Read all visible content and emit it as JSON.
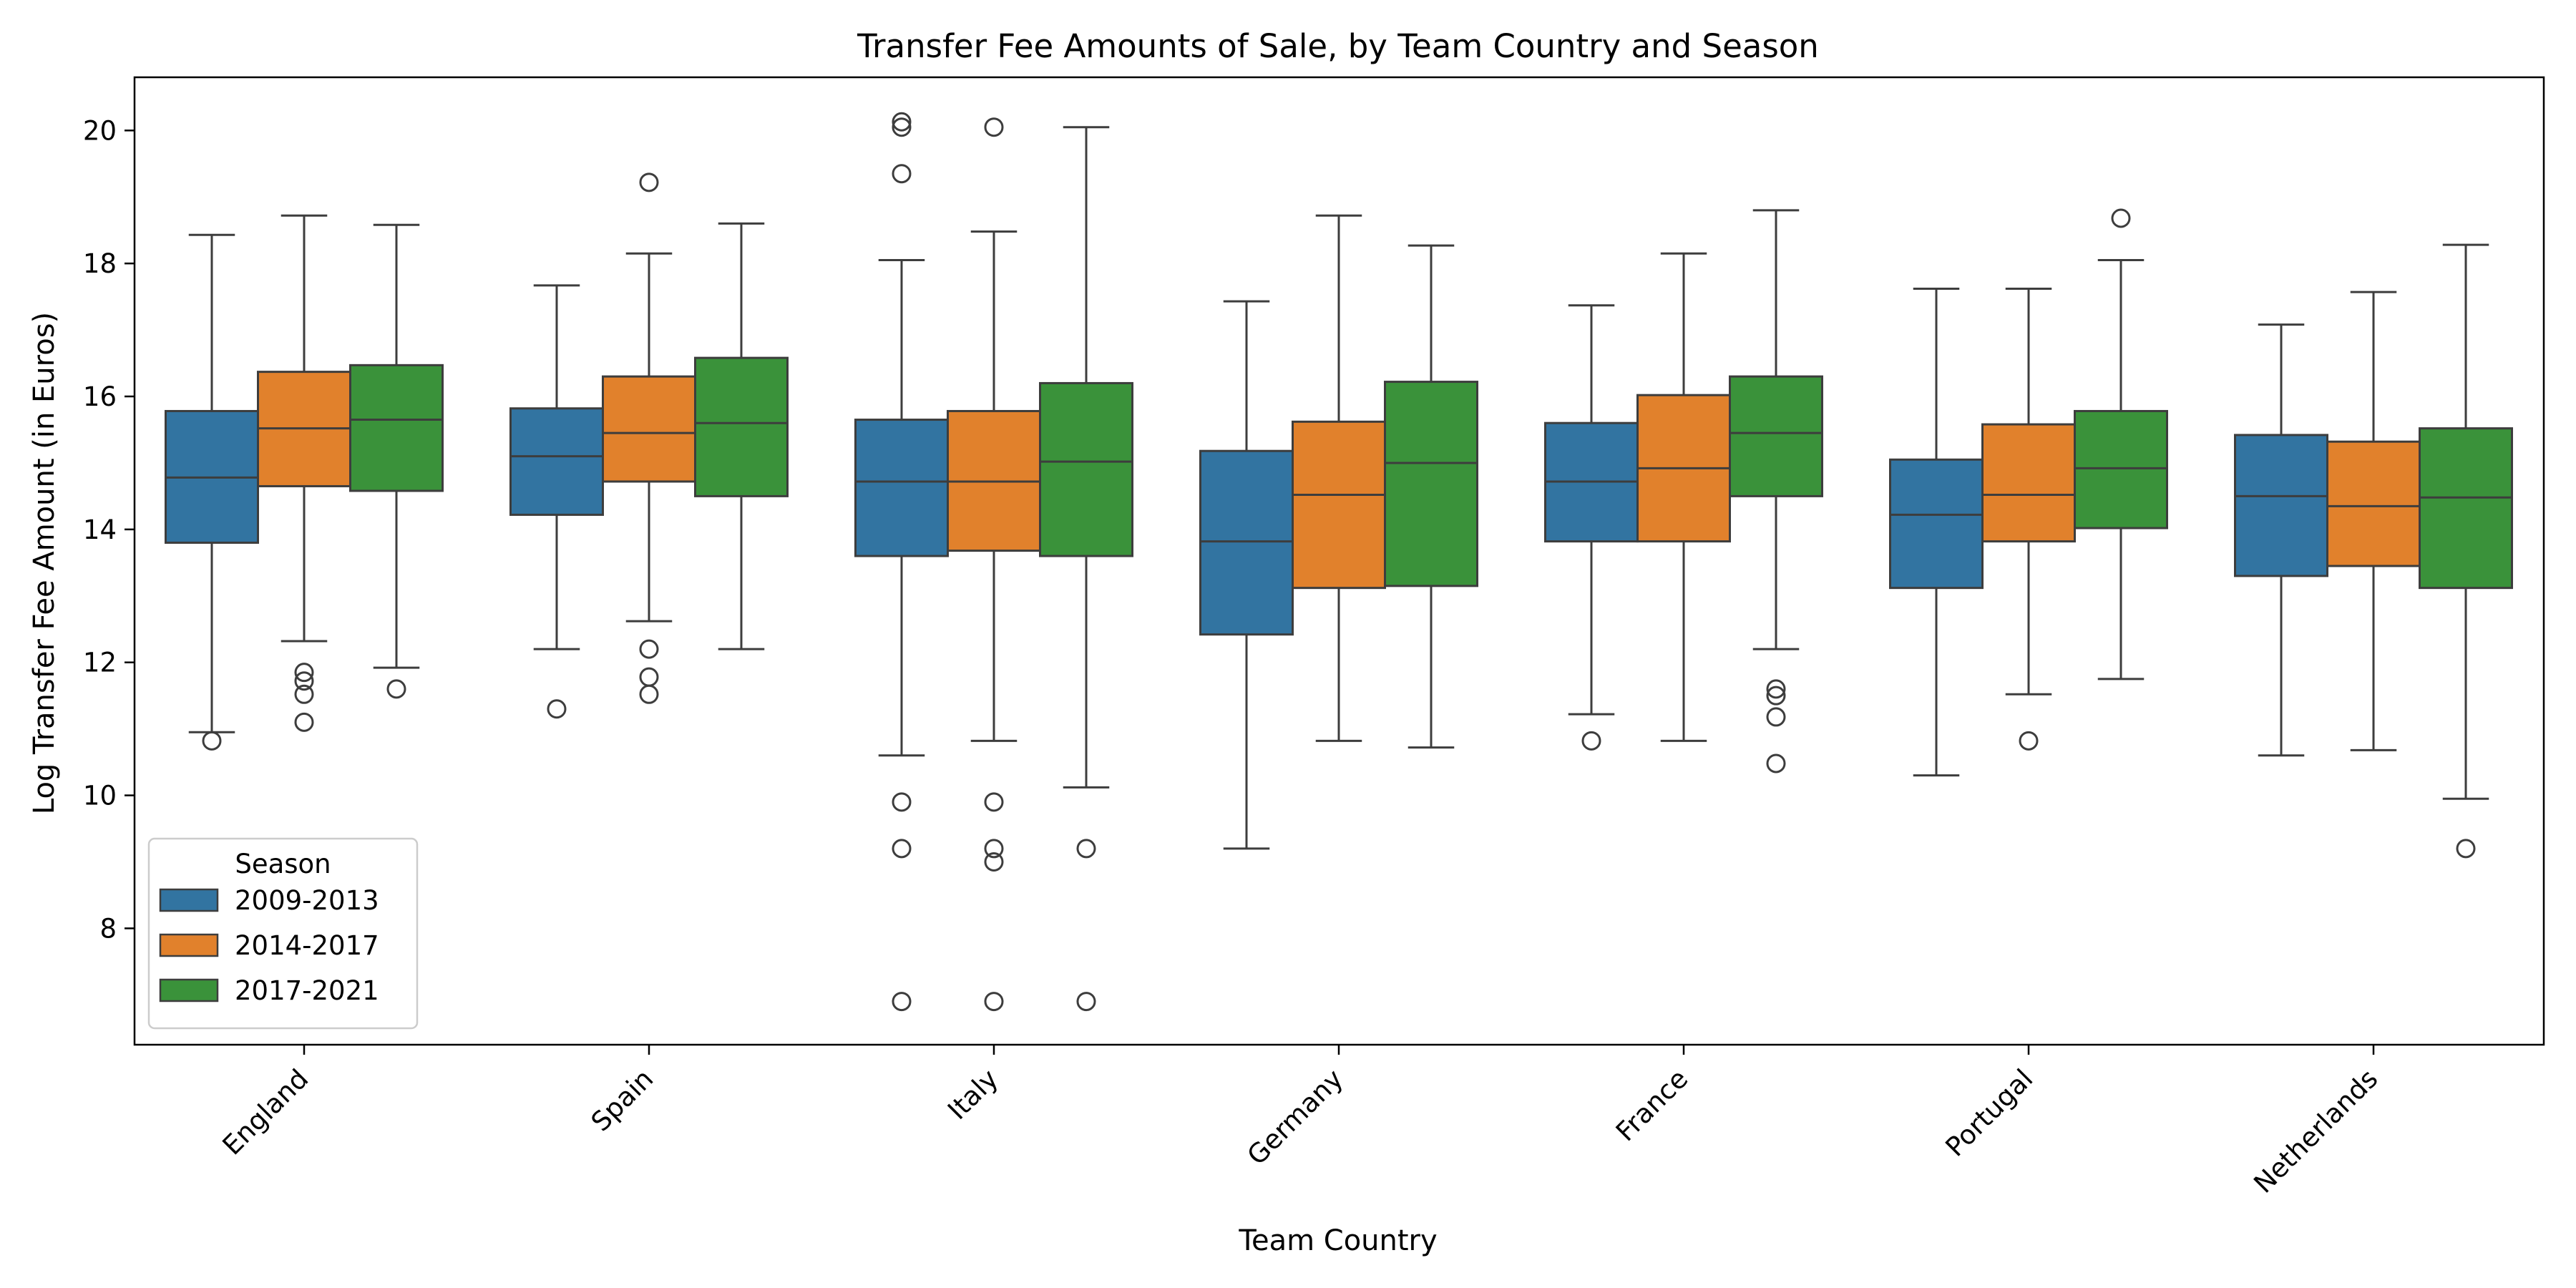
{
  "chart_data": {
    "type": "box",
    "title": "Transfer Fee Amounts of Sale, by Team Country and Season",
    "xlabel": "Team Country",
    "ylabel": "Log Transfer Fee Amount (in Euros)",
    "ylim": [
      6.25,
      20.8
    ],
    "yticks": [
      8,
      10,
      12,
      14,
      16,
      18,
      20
    ],
    "categories": [
      "England",
      "Spain",
      "Italy",
      "Germany",
      "France",
      "Portugal",
      "Netherlands"
    ],
    "legend": {
      "title": "Season",
      "position": "lower-left"
    },
    "series": [
      {
        "name": "2009-2013",
        "color": "#3274a1",
        "boxes": [
          {
            "whisker_low": 10.95,
            "q1": 13.8,
            "median": 14.78,
            "q3": 15.78,
            "whisker_high": 18.43,
            "outliers": [
              10.82
            ]
          },
          {
            "whisker_low": 12.2,
            "q1": 14.22,
            "median": 15.1,
            "q3": 15.82,
            "whisker_high": 17.67,
            "outliers": [
              11.3
            ]
          },
          {
            "whisker_low": 10.6,
            "q1": 13.6,
            "median": 14.72,
            "q3": 15.65,
            "whisker_high": 18.05,
            "outliers": [
              20.13,
              20.05,
              19.35,
              9.9,
              9.2,
              6.9
            ]
          },
          {
            "whisker_low": 9.2,
            "q1": 12.42,
            "median": 13.82,
            "q3": 15.18,
            "whisker_high": 17.43,
            "outliers": []
          },
          {
            "whisker_low": 11.22,
            "q1": 13.82,
            "median": 14.72,
            "q3": 15.6,
            "whisker_high": 17.37,
            "outliers": [
              10.82
            ]
          },
          {
            "whisker_low": 10.3,
            "q1": 13.12,
            "median": 14.22,
            "q3": 15.05,
            "whisker_high": 17.62,
            "outliers": []
          },
          {
            "whisker_low": 10.6,
            "q1": 13.3,
            "median": 14.5,
            "q3": 15.42,
            "whisker_high": 17.08,
            "outliers": []
          }
        ]
      },
      {
        "name": "2014-2017",
        "color": "#e1812c",
        "boxes": [
          {
            "whisker_low": 12.32,
            "q1": 14.65,
            "median": 15.52,
            "q3": 16.37,
            "whisker_high": 18.72,
            "outliers": [
              11.85,
              11.72,
              11.52,
              11.1
            ]
          },
          {
            "whisker_low": 12.62,
            "q1": 14.72,
            "median": 15.45,
            "q3": 16.3,
            "whisker_high": 18.15,
            "outliers": [
              19.22,
              12.2,
              11.78,
              11.52
            ]
          },
          {
            "whisker_low": 10.82,
            "q1": 13.68,
            "median": 14.72,
            "q3": 15.78,
            "whisker_high": 18.48,
            "outliers": [
              20.05,
              9.9,
              9.2,
              9.0,
              6.9
            ]
          },
          {
            "whisker_low": 10.82,
            "q1": 13.12,
            "median": 14.52,
            "q3": 15.62,
            "whisker_high": 18.72,
            "outliers": []
          },
          {
            "whisker_low": 10.82,
            "q1": 13.82,
            "median": 14.92,
            "q3": 16.02,
            "whisker_high": 18.15,
            "outliers": []
          },
          {
            "whisker_low": 11.52,
            "q1": 13.82,
            "median": 14.52,
            "q3": 15.58,
            "whisker_high": 17.62,
            "outliers": [
              10.82
            ]
          },
          {
            "whisker_low": 10.68,
            "q1": 13.45,
            "median": 14.35,
            "q3": 15.32,
            "whisker_high": 17.57,
            "outliers": []
          }
        ]
      },
      {
        "name": "2017-2021",
        "color": "#3a923a",
        "boxes": [
          {
            "whisker_low": 11.92,
            "q1": 14.58,
            "median": 15.65,
            "q3": 16.47,
            "whisker_high": 18.58,
            "outliers": [
              11.6
            ]
          },
          {
            "whisker_low": 12.2,
            "q1": 14.5,
            "median": 15.6,
            "q3": 16.58,
            "whisker_high": 18.6,
            "outliers": []
          },
          {
            "whisker_low": 10.12,
            "q1": 13.6,
            "median": 15.02,
            "q3": 16.2,
            "whisker_high": 20.05,
            "outliers": [
              9.2,
              6.9
            ]
          },
          {
            "whisker_low": 10.72,
            "q1": 13.15,
            "median": 15.0,
            "q3": 16.22,
            "whisker_high": 18.27,
            "outliers": []
          },
          {
            "whisker_low": 12.2,
            "q1": 14.5,
            "median": 15.45,
            "q3": 16.3,
            "whisker_high": 18.8,
            "outliers": [
              11.6,
              11.5,
              11.18,
              10.48
            ]
          },
          {
            "whisker_low": 11.75,
            "q1": 14.02,
            "median": 14.92,
            "q3": 15.78,
            "whisker_high": 18.05,
            "outliers": [
              18.68
            ]
          },
          {
            "whisker_low": 9.95,
            "q1": 13.12,
            "median": 14.48,
            "q3": 15.52,
            "whisker_high": 18.28,
            "outliers": [
              9.2
            ]
          }
        ]
      }
    ]
  }
}
